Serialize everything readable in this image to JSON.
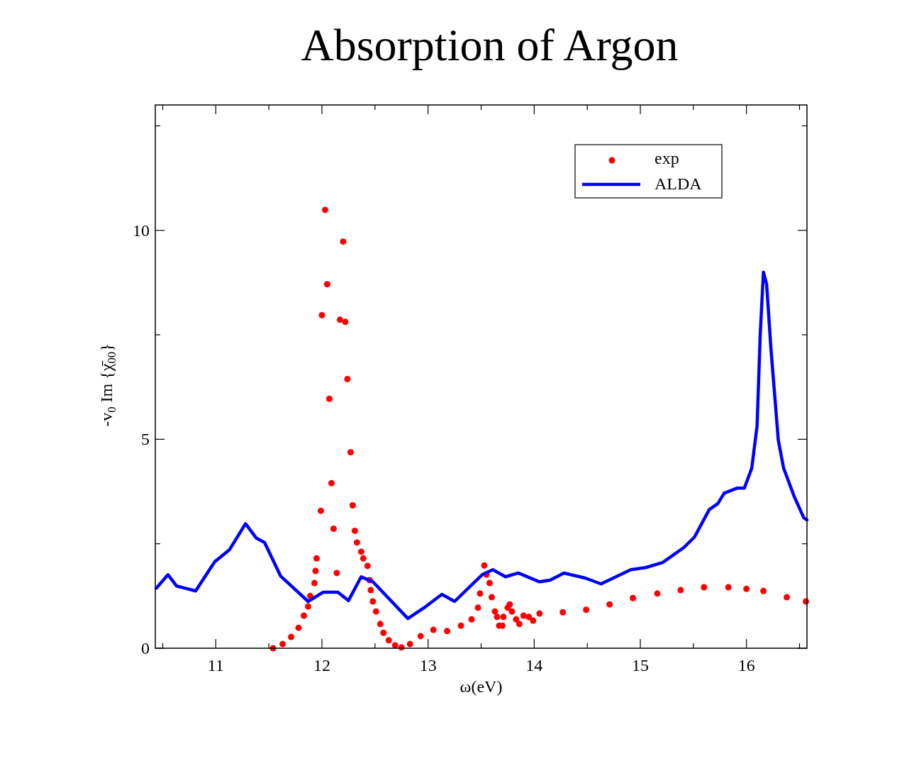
{
  "chart_data": {
    "type": "line",
    "title": "Absorption of Argon",
    "xlabel": "ω(eV)",
    "ylabel": "-v$_{0}$ Im {χ̄$_{00}$}",
    "xlim": [
      10.43,
      16.57
    ],
    "ylim": [
      0,
      13
    ],
    "xticks": [
      {
        "value": 10.5,
        "label": null
      },
      11,
      {
        "value": 11.5,
        "label": null
      },
      12,
      {
        "value": 12.5,
        "label": null
      },
      13,
      {
        "value": 13.5,
        "label": null
      },
      14,
      {
        "value": 14.5,
        "label": null
      },
      15,
      {
        "value": 15.5,
        "label": null
      },
      16,
      {
        "value": 16.5,
        "label": null
      }
    ],
    "yticks": [
      0,
      {
        "value": 2.5,
        "label": null
      },
      5,
      {
        "value": 7.5,
        "label": null
      },
      10,
      {
        "value": 12.5,
        "label": null
      }
    ],
    "grid": false,
    "legend": "top right",
    "series": [
      {
        "name": "exp",
        "type": "scatter",
        "marker": "circle",
        "color": "#ff0000",
        "x": [
          11.54,
          11.63,
          11.71,
          11.78,
          11.83,
          11.87,
          11.89,
          11.93,
          11.94,
          11.95,
          11.99,
          12.0,
          12.03,
          12.05,
          12.07,
          12.09,
          12.11,
          12.14,
          12.17,
          12.2,
          12.22,
          12.24,
          12.27,
          12.29,
          12.31,
          12.33,
          12.37,
          12.39,
          12.43,
          12.45,
          12.46,
          12.48,
          12.51,
          12.55,
          12.58,
          12.63,
          12.69,
          12.75,
          12.83,
          12.93,
          13.05,
          13.18,
          13.31,
          13.41,
          13.47,
          13.49,
          13.53,
          13.55,
          13.58,
          13.6,
          13.63,
          13.65,
          13.67,
          13.7,
          13.71,
          13.75,
          13.77,
          13.79,
          13.83,
          13.86,
          13.9,
          13.95,
          13.99,
          14.05,
          14.27,
          14.49,
          14.71,
          14.93,
          15.16,
          15.38,
          15.6,
          15.83,
          16.0,
          16.16,
          16.38,
          16.56
        ],
        "values": [
          0,
          0.1,
          0.27,
          0.49,
          0.78,
          1.0,
          1.25,
          1.56,
          1.85,
          2.15,
          3.29,
          7.97,
          10.49,
          8.71,
          5.97,
          3.95,
          2.86,
          1.8,
          7.86,
          9.73,
          7.81,
          6.44,
          4.69,
          3.42,
          2.81,
          2.53,
          2.31,
          2.15,
          1.97,
          1.63,
          1.39,
          1.12,
          0.88,
          0.58,
          0.37,
          0.19,
          0.07,
          0.02,
          0.1,
          0.29,
          0.44,
          0.41,
          0.54,
          0.69,
          0.97,
          1.31,
          1.98,
          1.76,
          1.56,
          1.22,
          0.88,
          0.75,
          0.54,
          0.54,
          0.75,
          0.97,
          1.05,
          0.88,
          0.69,
          0.58,
          0.78,
          0.75,
          0.66,
          0.83,
          0.86,
          0.92,
          1.05,
          1.2,
          1.31,
          1.39,
          1.46,
          1.46,
          1.42,
          1.37,
          1.22,
          1.12
        ]
      },
      {
        "name": "ALDA",
        "line_style": "solid",
        "color": "#0000ff",
        "x": [
          10.44,
          10.55,
          10.63,
          10.81,
          10.99,
          11.13,
          11.28,
          11.38,
          11.46,
          11.61,
          11.87,
          12.01,
          12.15,
          12.25,
          12.37,
          12.48,
          12.81,
          12.98,
          13.13,
          13.25,
          13.51,
          13.61,
          13.73,
          13.85,
          14.05,
          14.15,
          14.28,
          14.48,
          14.63,
          14.91,
          15.05,
          15.21,
          15.41,
          15.51,
          15.65,
          15.73,
          15.79,
          15.91,
          15.98,
          16.05,
          16.1,
          16.13,
          16.16,
          16.19,
          16.23,
          16.3,
          16.35,
          16.45,
          16.54,
          16.57
        ],
        "values": [
          1.44,
          1.76,
          1.49,
          1.37,
          2.07,
          2.36,
          2.98,
          2.64,
          2.53,
          1.73,
          1.12,
          1.34,
          1.34,
          1.14,
          1.71,
          1.59,
          0.71,
          1.0,
          1.29,
          1.12,
          1.76,
          1.88,
          1.71,
          1.8,
          1.59,
          1.63,
          1.8,
          1.68,
          1.54,
          1.88,
          1.93,
          2.05,
          2.41,
          2.66,
          3.32,
          3.46,
          3.71,
          3.83,
          3.83,
          4.31,
          5.32,
          7.53,
          9.0,
          8.71,
          7.19,
          4.98,
          4.31,
          3.63,
          3.12,
          3.07
        ]
      }
    ]
  }
}
